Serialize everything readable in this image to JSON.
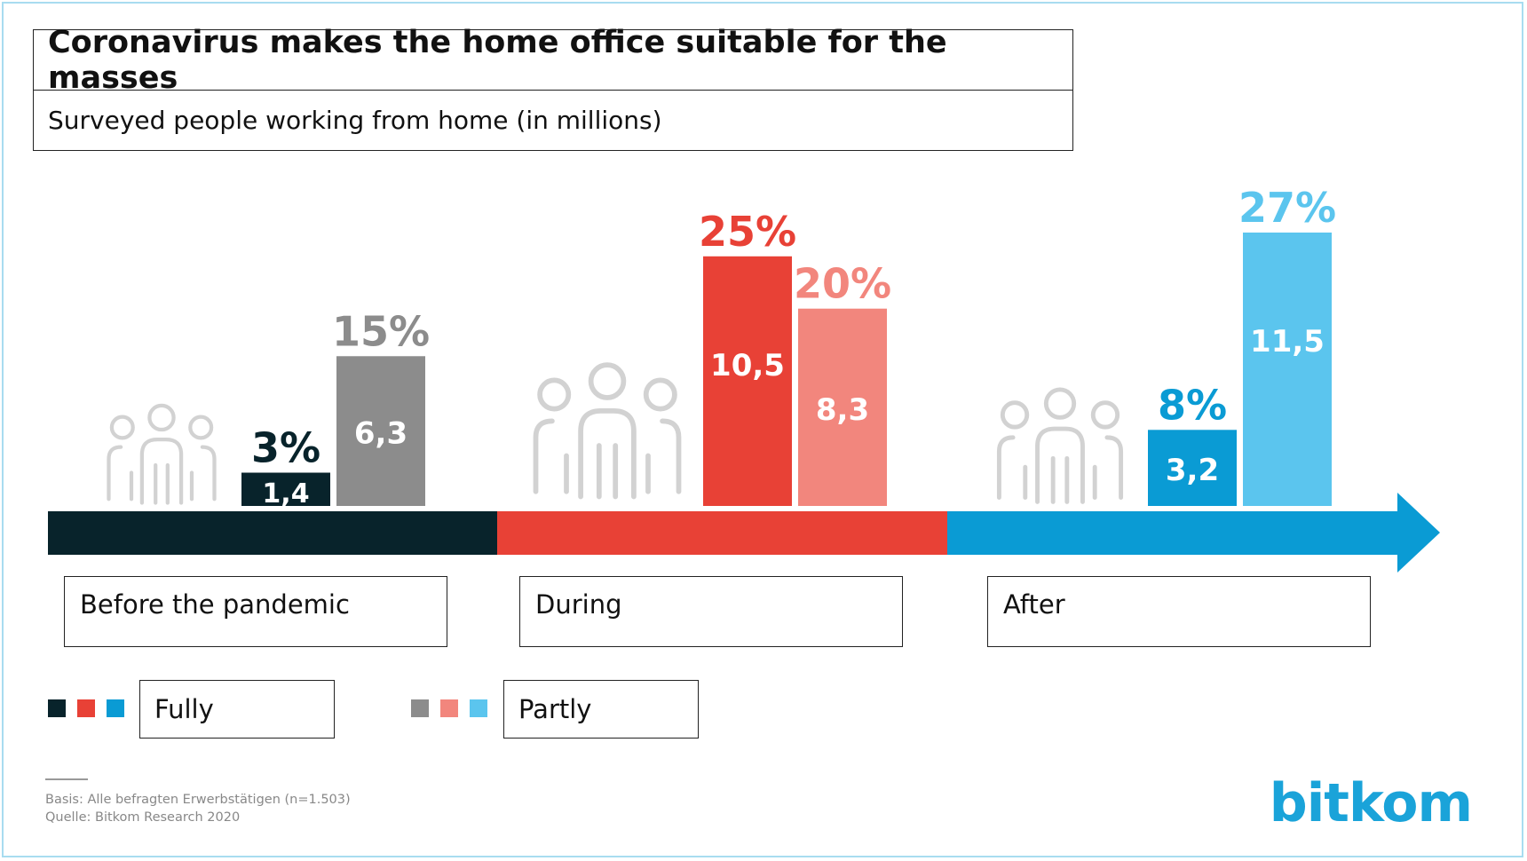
{
  "chart_data": {
    "type": "bar",
    "title": "Coronavirus makes the home office suitable for the masses",
    "subtitle": "Surveyed people working from home (in millions)",
    "categories": [
      "Before the pandemic",
      "During",
      "After"
    ],
    "series": [
      {
        "name": "Fully",
        "values": [
          1.4,
          10.5,
          3.2
        ],
        "value_labels": [
          "1,4",
          "10,5",
          "3,2"
        ],
        "percent_labels": [
          "3%",
          "25%",
          "8%"
        ]
      },
      {
        "name": "Partly",
        "values": [
          6.3,
          8.3,
          11.5
        ],
        "value_labels": [
          "6,3",
          "8,3",
          "11,5"
        ],
        "percent_labels": [
          "15%",
          "20%",
          "27%"
        ]
      }
    ],
    "colors": {
      "fully": [
        "#08232b",
        "#e84136",
        "#0a9bd4"
      ],
      "partly": [
        "#8c8c8c",
        "#f2867d",
        "#5bc5ee"
      ]
    },
    "timeline_colors": [
      "#08232b",
      "#e84136",
      "#0a9bd4"
    ],
    "icon": "people-group-icon",
    "ylim": [
      0,
      11.5
    ]
  },
  "legend": {
    "fully_label": "Fully",
    "partly_label": "Partly"
  },
  "footnote": {
    "basis": "Basis: Alle befragten Erwerbstätigen (n=1.503)",
    "source": "Quelle: Bitkom Research 2020"
  },
  "logo_text": "bitkom"
}
